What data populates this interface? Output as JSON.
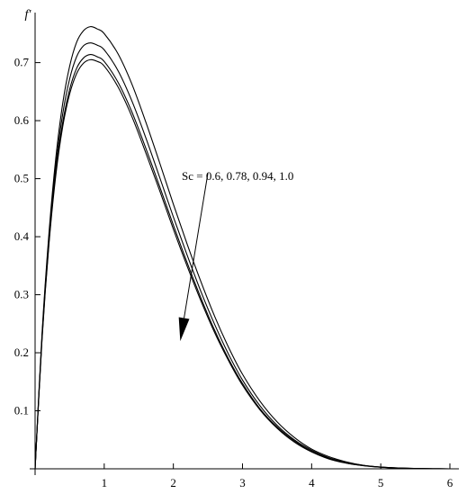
{
  "chart_data": {
    "type": "line",
    "title": "",
    "xlabel": "",
    "ylabel": "f′",
    "xlim": [
      0,
      6
    ],
    "ylim": [
      0,
      0.78
    ],
    "xticks": [
      1,
      2,
      3,
      4,
      5,
      6
    ],
    "yticks": [
      0.1,
      0.2,
      0.3,
      0.4,
      0.5,
      0.6,
      0.7
    ],
    "grid": false,
    "legend": "none",
    "annotation": {
      "text": "Sc = 0.6, 0.78, 0.94, 1.0",
      "arrow_from": [
        2.5,
        0.51
      ],
      "arrow_to": [
        2.1,
        0.22
      ]
    },
    "series": [
      {
        "x": [
          0,
          0.1,
          0.2,
          0.3,
          0.4,
          0.5,
          0.6,
          0.7,
          0.8,
          0.9,
          1.0,
          1.2,
          1.4,
          1.6,
          1.8,
          2.0,
          2.2,
          2.4,
          2.6,
          2.8,
          3.0,
          3.25,
          3.5,
          3.75,
          4.0,
          4.25,
          4.5,
          4.75,
          5.0,
          5.25,
          5.5,
          5.75,
          6.0
        ],
        "y": [
          0,
          0.232,
          0.405,
          0.536,
          0.63,
          0.694,
          0.735,
          0.755,
          0.762,
          0.758,
          0.75,
          0.715,
          0.663,
          0.598,
          0.528,
          0.456,
          0.387,
          0.322,
          0.262,
          0.209,
          0.163,
          0.117,
          0.081,
          0.054,
          0.034,
          0.021,
          0.012,
          0.006,
          0.003,
          0.0015,
          0.0007,
          0.0002,
          0
        ]
      },
      {
        "x": [
          0,
          0.1,
          0.2,
          0.3,
          0.4,
          0.5,
          0.6,
          0.7,
          0.8,
          0.9,
          1.0,
          1.2,
          1.4,
          1.6,
          1.8,
          2.0,
          2.2,
          2.4,
          2.6,
          2.8,
          3.0,
          3.25,
          3.5,
          3.75,
          4.0,
          4.25,
          4.5,
          4.75,
          5.0,
          5.25,
          5.5,
          5.75,
          6.0
        ],
        "y": [
          0,
          0.228,
          0.397,
          0.523,
          0.612,
          0.672,
          0.71,
          0.729,
          0.734,
          0.73,
          0.722,
          0.686,
          0.634,
          0.571,
          0.503,
          0.434,
          0.368,
          0.305,
          0.248,
          0.197,
          0.153,
          0.109,
          0.075,
          0.05,
          0.032,
          0.019,
          0.011,
          0.006,
          0.003,
          0.0014,
          0.0006,
          0.0002,
          0
        ]
      },
      {
        "x": [
          0,
          0.1,
          0.2,
          0.3,
          0.4,
          0.5,
          0.6,
          0.7,
          0.8,
          0.9,
          1.0,
          1.2,
          1.4,
          1.6,
          1.8,
          2.0,
          2.2,
          2.4,
          2.6,
          2.8,
          3.0,
          3.25,
          3.5,
          3.75,
          4.0,
          4.25,
          4.5,
          4.75,
          5.0,
          5.25,
          5.5,
          5.75,
          6.0
        ],
        "y": [
          0,
          0.224,
          0.39,
          0.512,
          0.597,
          0.654,
          0.69,
          0.708,
          0.714,
          0.71,
          0.702,
          0.666,
          0.615,
          0.553,
          0.487,
          0.42,
          0.355,
          0.294,
          0.238,
          0.189,
          0.147,
          0.104,
          0.072,
          0.048,
          0.03,
          0.018,
          0.01,
          0.0055,
          0.0028,
          0.0013,
          0.0006,
          0.0002,
          0
        ]
      },
      {
        "x": [
          0,
          0.1,
          0.2,
          0.3,
          0.4,
          0.5,
          0.6,
          0.7,
          0.8,
          0.9,
          1.0,
          1.2,
          1.4,
          1.6,
          1.8,
          2.0,
          2.2,
          2.4,
          2.6,
          2.8,
          3.0,
          3.25,
          3.5,
          3.75,
          4.0,
          4.25,
          4.5,
          4.75,
          5.0,
          5.25,
          5.5,
          5.75,
          6.0
        ],
        "y": [
          0,
          0.222,
          0.386,
          0.506,
          0.59,
          0.646,
          0.681,
          0.699,
          0.705,
          0.702,
          0.694,
          0.658,
          0.607,
          0.545,
          0.48,
          0.413,
          0.349,
          0.289,
          0.234,
          0.186,
          0.144,
          0.102,
          0.07,
          0.046,
          0.029,
          0.017,
          0.0097,
          0.0053,
          0.0027,
          0.0012,
          0.0005,
          0.0002,
          0
        ]
      }
    ]
  }
}
